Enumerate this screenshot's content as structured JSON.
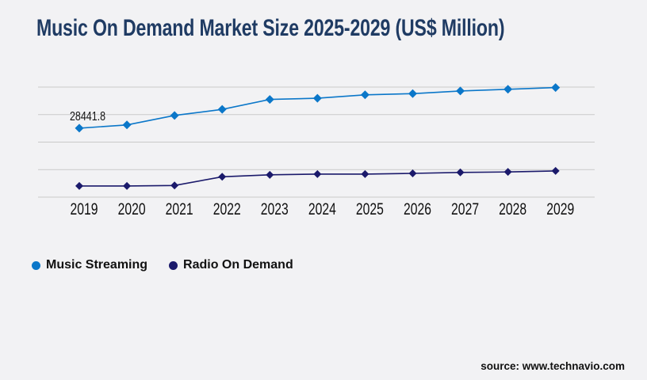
{
  "page": {
    "background": "#f2f2f4"
  },
  "header": {
    "title": "Music On Demand Market Size 2025-2029 (US$ Million)",
    "title_color": "#1f3b63"
  },
  "chart_data": {
    "type": "line",
    "title": "Music On Demand Market Size 2025-2029 (US$ Million)",
    "xlabel": "",
    "ylabel": "",
    "x": [
      2019,
      2020,
      2021,
      2022,
      2023,
      2024,
      2025,
      2026,
      2027,
      2028,
      2029
    ],
    "series": [
      {
        "name": "Music Streaming",
        "color": "#0b77c9",
        "marker": "diamond",
        "values": [
          28441.8,
          29800,
          33700,
          36200,
          40300,
          40800,
          42200,
          42700,
          43800,
          44500,
          45200
        ]
      },
      {
        "name": "Radio On Demand",
        "color": "#1b1a6b",
        "marker": "diamond",
        "values": [
          4600,
          4600,
          4800,
          8400,
          9200,
          9500,
          9500,
          9800,
          10200,
          10400,
          10800
        ]
      }
    ],
    "annotations": [
      {
        "series_index": 0,
        "x_index": 0,
        "text": "28441.8"
      }
    ],
    "ylim": [
      0,
      45400
    ],
    "grid": true,
    "gridline_count": 5,
    "gridline_color": "#c9c9c9",
    "y_axis_labels_visible": false,
    "tick_label_color": "#111111",
    "legend_position": "bottom-left"
  },
  "legend": {
    "items": [
      {
        "label": "Music Streaming",
        "color": "#0b77c9"
      },
      {
        "label": "Radio On Demand",
        "color": "#1b1a6b"
      }
    ]
  },
  "footer": {
    "source": "source: www.technavio.com"
  }
}
